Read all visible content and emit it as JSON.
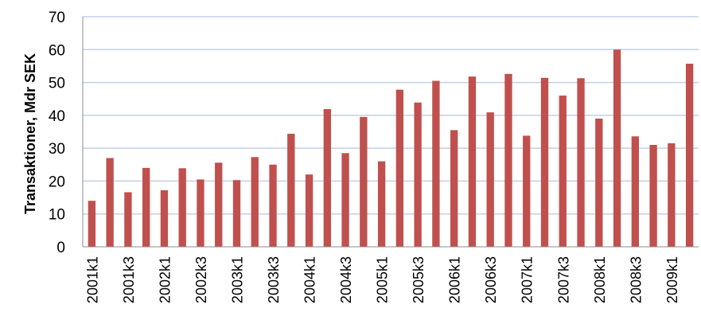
{
  "chart_data": {
    "type": "bar",
    "title": "",
    "xlabel": "",
    "ylabel": "Transaktioner, Mdr SEK",
    "ylim": [
      0,
      70
    ],
    "y_ticks": [
      0,
      10,
      20,
      30,
      40,
      50,
      60,
      70
    ],
    "grid": true,
    "legend": "none",
    "bar_color": "#C0504D",
    "grid_color": "#C3CFEA",
    "categories": [
      "2001k1",
      "2001k2",
      "2001k3",
      "2001k4",
      "2002k1",
      "2002k2",
      "2002k3",
      "2002k4",
      "2003k1",
      "2003k2",
      "2003k3",
      "2003k4",
      "2004k1",
      "2004k2",
      "2004k3",
      "2004k4",
      "2005k1",
      "2005k2",
      "2005k3",
      "2005k4",
      "2006k1",
      "2006k2",
      "2006k3",
      "2006k4",
      "2007k1",
      "2007k2",
      "2007k3",
      "2007k4",
      "2008k1",
      "2008k2",
      "2008k3",
      "2008k4",
      "2009k1",
      "2009k2"
    ],
    "x_tick_labels": [
      "2001k1",
      "2001k3",
      "2002k1",
      "2002k3",
      "2003k1",
      "2003k3",
      "2004k1",
      "2004k3",
      "2005k1",
      "2005k3",
      "2006k1",
      "2006k3",
      "2007k1",
      "2007k3",
      "2008k1",
      "2008k3",
      "2009k1"
    ],
    "values": [
      14.0,
      27.0,
      16.6,
      24.0,
      17.2,
      23.9,
      20.5,
      25.6,
      20.3,
      27.3,
      25.0,
      34.4,
      22.0,
      41.9,
      28.5,
      39.5,
      26.0,
      47.8,
      43.9,
      50.5,
      35.5,
      51.8,
      40.9,
      52.6,
      33.8,
      51.4,
      46.0,
      51.3,
      39.0,
      60.0,
      33.6,
      31.0,
      31.5,
      55.7
    ]
  }
}
